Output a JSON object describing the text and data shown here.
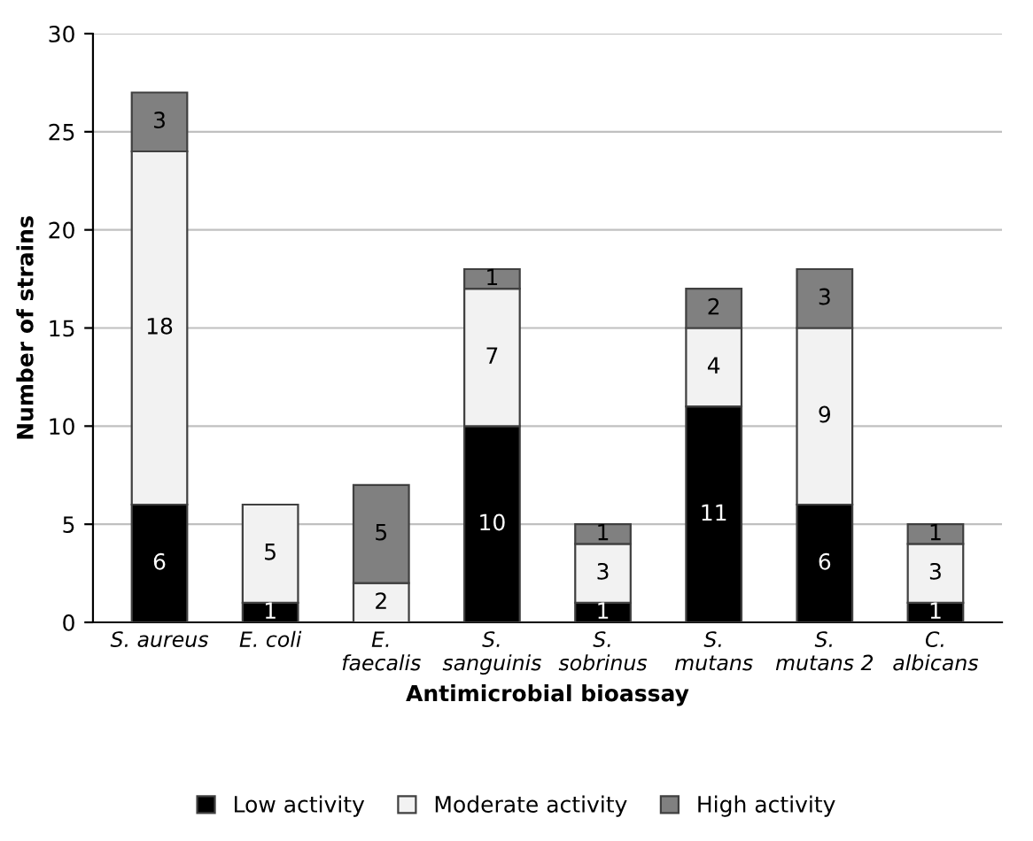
{
  "chart_data": {
    "type": "bar",
    "stacked": true,
    "xlabel": "Antimicrobial bioassay",
    "ylabel": "Number of strains",
    "categories": [
      "S. aureus",
      "E. coli",
      "E.\nfaecalis",
      "S.\nsanguinis",
      "S.\nsobrinus",
      "S.\nmutans",
      "S.\nmutans 2",
      "C.\nalbicans"
    ],
    "series": [
      {
        "name": "Low activity",
        "color": "#000000",
        "values": [
          6,
          1,
          null,
          10,
          1,
          11,
          6,
          1
        ],
        "value_labels": [
          "6",
          "1",
          null,
          "10",
          "1",
          "11",
          "6",
          "1"
        ]
      },
      {
        "name": "Moderate activity",
        "color": "#f2f2f2",
        "values": [
          18,
          5,
          2,
          7,
          3,
          4,
          9,
          3
        ],
        "value_labels": [
          "18",
          "5",
          "2",
          "7",
          "3",
          "4",
          "9",
          "3"
        ]
      },
      {
        "name": "High activity",
        "color": "#808080",
        "values": [
          3,
          null,
          5,
          1,
          1,
          2,
          3,
          1
        ],
        "value_labels": [
          "3",
          null,
          "5",
          "1",
          "1",
          "2",
          "3",
          "1"
        ]
      }
    ],
    "ylim": [
      0,
      30
    ],
    "yticks": [
      0,
      5,
      10,
      15,
      20,
      25,
      30
    ],
    "grid": "y",
    "legend": "bottom"
  }
}
